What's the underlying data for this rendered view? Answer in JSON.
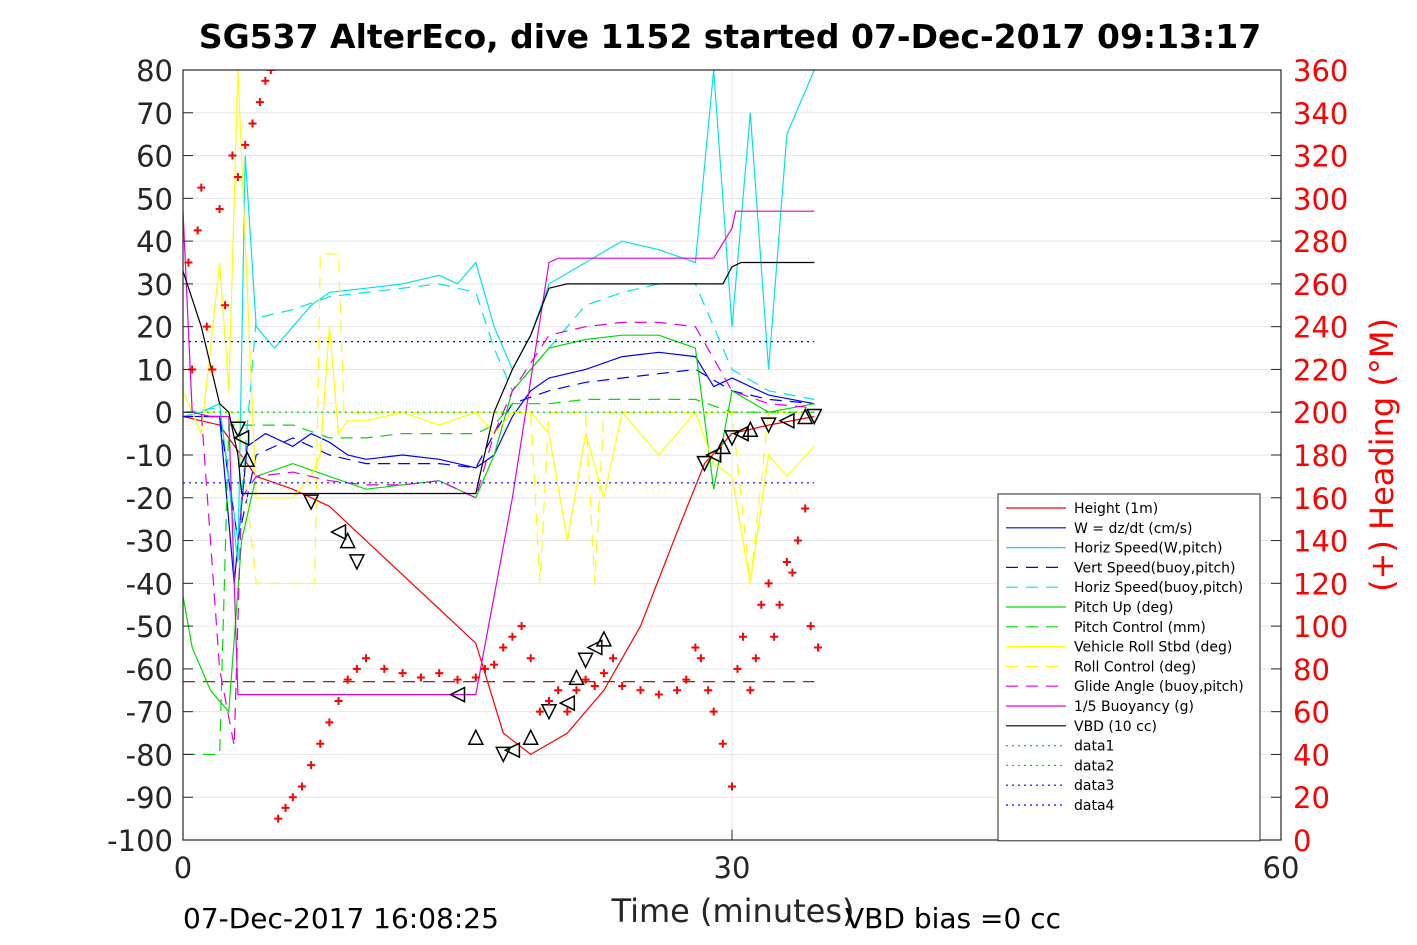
{
  "chart_data": {
    "type": "line",
    "title": "SG537 AlterEco, dive 1152 started 07-Dec-2017 09:13:17",
    "xlabel": "Time (minutes)",
    "ylabel_right": "(+) Heading (°M)",
    "footer_left": "07-Dec-2017 16:08:25",
    "footer_right": "VBD bias =0 cc",
    "xlim": [
      0,
      60
    ],
    "ylim": [
      -100,
      80
    ],
    "ylim_right": [
      0,
      360
    ],
    "x_ticks": [
      "0",
      "30",
      "60"
    ],
    "y_ticks": [
      "80",
      "70",
      "60",
      "50",
      "40",
      "30",
      "20",
      "10",
      "0",
      "-10",
      "-20",
      "-30",
      "-40",
      "-50",
      "-60",
      "-70",
      "-80",
      "-90",
      "-100"
    ],
    "y_right_ticks": [
      "360",
      "340",
      "320",
      "300",
      "280",
      "260",
      "240",
      "220",
      "200",
      "180",
      "160",
      "140",
      "120",
      "100",
      "80",
      "60",
      "40",
      "20",
      "0"
    ],
    "grid": true,
    "legend_position": "bottom-right",
    "colors": {
      "red": "#ff0000",
      "blue": "#0000ff",
      "cyan": "#00e5e5",
      "green": "#00dd00",
      "yellow": "#ffff00",
      "magenta": "#e000e0",
      "black": "#000000"
    },
    "series": [
      {
        "name": "Height (1m)",
        "color": "#ff0000",
        "dash": "solid",
        "x": [
          0,
          2,
          4,
          6,
          8,
          10,
          12,
          14,
          16,
          17.5,
          19,
          21,
          23,
          25,
          27,
          28.5,
          30,
          32,
          34.5
        ],
        "y": [
          -1,
          -3,
          -15,
          -18,
          -22,
          -30,
          -38,
          -46,
          -54,
          -75,
          -80,
          -75,
          -65,
          -50,
          -28,
          -12,
          -5,
          -3,
          -1
        ]
      },
      {
        "name": "W = dz/dt (cm/s)",
        "color": "#0000ff",
        "dash": "solid",
        "x": [
          0,
          1,
          2,
          2.8,
          3.5,
          4.5,
          6,
          7,
          8,
          9,
          10,
          12,
          14,
          15,
          16,
          17,
          18,
          19,
          20,
          22,
          24,
          26,
          28,
          29,
          30,
          32,
          34.5
        ],
        "y": [
          -1,
          -1,
          -1,
          -40,
          -8,
          -5,
          -8,
          -5,
          -7,
          -10,
          -11,
          -10,
          -11,
          -12,
          -13,
          -10,
          -1,
          5,
          8,
          10,
          13,
          14,
          13,
          6,
          8,
          4,
          2
        ]
      },
      {
        "name": "Horiz Speed(W,pitch)",
        "color": "#00e5e5",
        "dash": "solid",
        "x": [
          0,
          1,
          2,
          3,
          3.4,
          4,
          5,
          6,
          7,
          8,
          10,
          12,
          14,
          15,
          16,
          17,
          18,
          19,
          20,
          22,
          24,
          26,
          28,
          29,
          30,
          31,
          32,
          33,
          34.5
        ],
        "y": [
          -1,
          0,
          2,
          -35,
          60,
          20,
          15,
          20,
          25,
          28,
          29,
          30,
          32,
          30,
          35,
          20,
          10,
          18,
          30,
          35,
          40,
          38,
          35,
          80,
          20,
          70,
          10,
          65,
          80
        ]
      },
      {
        "name": "Vert Speed(buoy,pitch)",
        "color": "#0000ff",
        "dash": "dashed",
        "x": [
          0,
          2,
          3,
          4,
          6,
          8,
          10,
          12,
          14,
          16,
          17,
          18,
          20,
          22,
          24,
          26,
          28,
          30,
          32,
          34.5
        ],
        "y": [
          -1,
          -1,
          -30,
          -10,
          -6,
          -10,
          -12,
          -12,
          -12,
          -13,
          -5,
          2,
          5,
          7,
          8,
          9,
          10,
          5,
          3,
          2
        ]
      },
      {
        "name": "Horiz Speed(buoy,pitch)",
        "color": "#00e5e5",
        "dash": "dashed",
        "x": [
          0,
          2,
          3,
          4,
          6,
          8,
          10,
          12,
          14,
          16,
          17,
          18,
          20,
          22,
          24,
          26,
          28,
          30,
          32,
          34.5
        ],
        "y": [
          0,
          1,
          -30,
          22,
          24,
          27,
          28,
          29,
          30,
          28,
          15,
          5,
          15,
          25,
          28,
          30,
          30,
          10,
          5,
          3
        ]
      },
      {
        "name": "Pitch Up (deg)",
        "color": "#00dd00",
        "dash": "solid",
        "x": [
          0,
          0.5,
          1.5,
          2.5,
          3.2,
          4,
          6,
          8,
          10,
          12,
          14,
          16,
          17,
          18,
          20,
          22,
          24,
          26,
          28,
          29,
          30,
          32,
          34.5
        ],
        "y": [
          -43,
          -55,
          -65,
          -70,
          -30,
          -15,
          -12,
          -15,
          -18,
          -17,
          -16,
          -20,
          -10,
          5,
          15,
          17,
          18,
          18,
          15,
          -18,
          5,
          0,
          2
        ]
      },
      {
        "name": "Pitch Control (mm)",
        "color": "#00dd00",
        "dash": "dashed",
        "x": [
          0,
          2,
          2.5,
          3.2,
          4,
          6,
          8,
          10,
          12,
          14,
          16,
          17,
          18,
          20,
          22,
          24,
          26,
          28,
          30,
          32,
          34.5
        ],
        "y": [
          -80,
          -80,
          -3,
          -3,
          -3,
          -3,
          -6,
          -6,
          -5,
          -5,
          -5,
          -3,
          2,
          2,
          3,
          3,
          3,
          3,
          0,
          0,
          0
        ]
      },
      {
        "name": "Vehicle Roll Stbd (deg)",
        "color": "#ffff00",
        "dash": "solid",
        "x": [
          0,
          1,
          2,
          2.5,
          3,
          4,
          6,
          7,
          7.5,
          8,
          8.5,
          9,
          10,
          12,
          14,
          16,
          17,
          18,
          19,
          20,
          21,
          22,
          23,
          24,
          26,
          28,
          29,
          30,
          31,
          32,
          33,
          34.5
        ],
        "y": [
          5,
          -5,
          35,
          5,
          80,
          -20,
          -20,
          -15,
          -10,
          20,
          -5,
          -2,
          -2,
          0,
          -3,
          0,
          -5,
          0,
          0,
          -5,
          -30,
          -5,
          -20,
          0,
          -10,
          0,
          -12,
          -15,
          -40,
          -10,
          -15,
          -8
        ]
      },
      {
        "name": "Roll Control (deg)",
        "color": "#ffff00",
        "dash": "dashed",
        "x": [
          0,
          2,
          3,
          4,
          6,
          7.2,
          7.5,
          8.5,
          8.8,
          10,
          12,
          14,
          16,
          18,
          19,
          19.5,
          20,
          21,
          22,
          22.5,
          23,
          24,
          26,
          28,
          30,
          31,
          32,
          34.5
        ],
        "y": [
          0,
          0,
          0,
          -40,
          -40,
          -40,
          37,
          37,
          0,
          0,
          0,
          0,
          0,
          0,
          0,
          -40,
          0,
          0,
          0,
          -40,
          0,
          0,
          0,
          0,
          0,
          -40,
          0,
          0
        ]
      },
      {
        "name": "Glide Angle (buoy,pitch)",
        "color": "#e000e0",
        "dash": "dashed",
        "x": [
          0,
          1,
          2,
          2.8,
          3.2,
          4,
          6,
          8,
          10,
          12,
          14,
          16,
          17,
          18,
          20,
          22,
          24,
          26,
          28,
          30,
          32,
          34.5
        ],
        "y": [
          0,
          0,
          -60,
          -78,
          -20,
          -15,
          -14,
          -16,
          -17,
          -17,
          -16,
          -20,
          -5,
          5,
          18,
          20,
          21,
          21,
          20,
          5,
          2,
          1
        ]
      },
      {
        "name": "1/5 Buoyancy (g)",
        "color": "#e000e0",
        "dash": "solid",
        "x": [
          0,
          0.5,
          1.5,
          2.5,
          3,
          3.2,
          16,
          18,
          20,
          20.5,
          21,
          28,
          29,
          30,
          30.2,
          34.5
        ],
        "y": [
          47,
          0,
          -1,
          -1,
          -66,
          -66,
          -66,
          -20,
          35,
          36,
          36,
          36,
          36,
          43,
          47,
          47
        ]
      },
      {
        "name": "VBD (10 cc)",
        "color": "#000000",
        "dash": "solid",
        "x": [
          0,
          1,
          2,
          2.5,
          3,
          3.2,
          16,
          17,
          18,
          19,
          20,
          21,
          28,
          29.5,
          30,
          30.5,
          34.5
        ],
        "y": [
          33,
          20,
          2,
          0,
          -10,
          -19,
          -19,
          0,
          10,
          18,
          29,
          30,
          30,
          30,
          34,
          35,
          35
        ]
      },
      {
        "name": "data1",
        "color": "#00dd00",
        "dash": "dotted",
        "x": [
          0,
          34.5
        ],
        "y": [
          0,
          0
        ]
      },
      {
        "name": "data2",
        "color": "#00dd00",
        "dash": "dotted",
        "x": [
          0,
          34.5
        ],
        "y": [
          0,
          0
        ]
      },
      {
        "name": "data3",
        "color": "#0000ff",
        "dash": "dotted",
        "x": [
          0,
          34.5
        ],
        "y": [
          16.5,
          16.5
        ]
      },
      {
        "name": "data4",
        "color": "#0000ff",
        "dash": "dotted",
        "x": [
          0,
          34.5
        ],
        "y": [
          -16.5,
          -16.5
        ]
      }
    ],
    "reference_lines": [
      {
        "color": "#990000",
        "dash": "dashed",
        "x": [
          0,
          34.5
        ],
        "y": [
          -63,
          -63
        ]
      }
    ],
    "height_markers": {
      "x": [
        3,
        3.2,
        3.5,
        7,
        8.5,
        9,
        9.5,
        15,
        16,
        17.5,
        18,
        19,
        20,
        21,
        21.5,
        22,
        22.5,
        23,
        28.5,
        29,
        29.5,
        30,
        30.5,
        31,
        32,
        33,
        34,
        34.5
      ],
      "y": [
        -4,
        -6,
        -11,
        -21,
        -28,
        -30,
        -35,
        -66,
        -76,
        -80,
        -79,
        -76,
        -70,
        -68,
        -62,
        -58,
        -55,
        -53,
        -12,
        -10,
        -8,
        -6,
        -5,
        -4,
        -3,
        -2,
        -1,
        -1
      ]
    },
    "heading_points": {
      "x": [
        0.3,
        0.5,
        0.8,
        1,
        1.3,
        1.6,
        2,
        2.3,
        2.7,
        3,
        3.4,
        3.8,
        4.2,
        4.5,
        4.8,
        5.2,
        5.6,
        6,
        6.5,
        7,
        7.5,
        8,
        8.5,
        9,
        9.5,
        10,
        11,
        12,
        13,
        14,
        15,
        16,
        16.5,
        17,
        17.5,
        18,
        18.5,
        19,
        19.5,
        20,
        20.5,
        21,
        21.5,
        22,
        22.5,
        23,
        23.5,
        24,
        25,
        26,
        27,
        27.5,
        28,
        28.3,
        28.7,
        29,
        29.5,
        30,
        30.3,
        30.6,
        31,
        31.3,
        31.6,
        32,
        32.3,
        32.6,
        33,
        33.3,
        33.6,
        34,
        34.3,
        34.7
      ],
      "y": [
        270,
        220,
        285,
        305,
        240,
        220,
        295,
        250,
        320,
        310,
        325,
        335,
        345,
        355,
        360,
        10,
        15,
        20,
        25,
        35,
        45,
        55,
        65,
        75,
        80,
        85,
        80,
        78,
        76,
        78,
        75,
        76,
        80,
        82,
        90,
        95,
        100,
        85,
        60,
        65,
        70,
        60,
        70,
        75,
        72,
        78,
        85,
        72,
        70,
        68,
        70,
        75,
        90,
        85,
        70,
        60,
        45,
        25,
        80,
        95,
        70,
        85,
        110,
        120,
        95,
        110,
        130,
        125,
        140,
        155,
        100,
        90
      ]
    }
  }
}
